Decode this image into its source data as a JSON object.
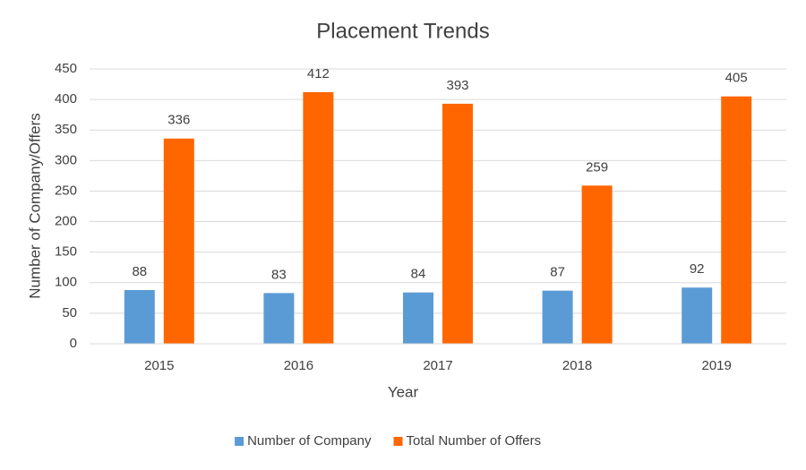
{
  "chart_data": {
    "type": "bar",
    "title": "Placement Trends",
    "x_label": "Year",
    "y_label": "Number of Company/Offers",
    "categories": [
      "2015",
      "2016",
      "2017",
      "2018",
      "2019"
    ],
    "series": [
      {
        "name": "Number of Company",
        "color": "#5b9bd5",
        "values": [
          88,
          83,
          84,
          87,
          92
        ]
      },
      {
        "name": "Total Number of Offers",
        "color": "#ff6600",
        "values": [
          336,
          412,
          393,
          259,
          405
        ]
      }
    ],
    "ylim": [
      0,
      450
    ],
    "yticks": [
      0,
      50,
      100,
      150,
      200,
      250,
      300,
      350,
      400,
      450
    ],
    "grid": true,
    "legend": "bottom"
  }
}
